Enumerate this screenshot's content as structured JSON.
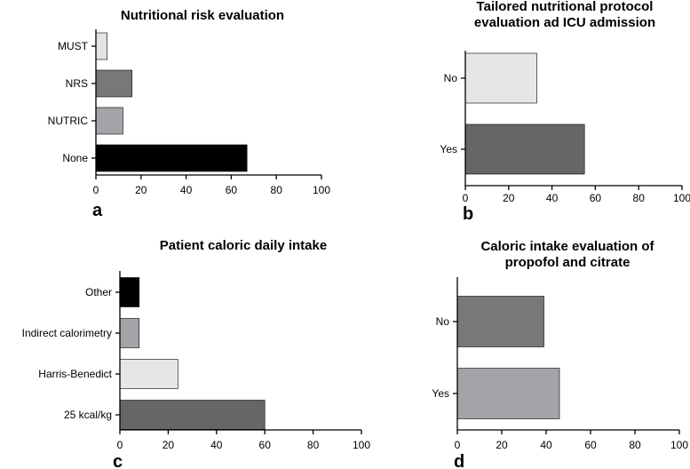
{
  "chart_data": [
    {
      "type": "bar",
      "orientation": "horizontal",
      "panel_label": "a",
      "title_lines": [
        "Nutritional risk evaluation"
      ],
      "categories": [
        "MUST",
        "NRS",
        "NUTRIC",
        "None"
      ],
      "values": [
        5,
        16,
        12,
        67
      ],
      "colors": [
        "#e3e3e3",
        "#787878",
        "#a4a4a8",
        "#000000"
      ],
      "xlim": [
        0,
        100
      ],
      "xticks": [
        "0",
        "20",
        "40",
        "60",
        "80",
        "100"
      ],
      "xlabel": "",
      "ylabel": ""
    },
    {
      "type": "bar",
      "orientation": "horizontal",
      "panel_label": "b",
      "title_lines": [
        "Tailored nutritional protocol",
        "evaluation ad ICU admission"
      ],
      "categories": [
        "No",
        "Yes"
      ],
      "values": [
        33,
        55
      ],
      "colors": [
        "#e6e6e6",
        "#666666"
      ],
      "xlim": [
        0,
        100
      ],
      "xticks": [
        "0",
        "20",
        "40",
        "60",
        "80",
        "100"
      ],
      "xlabel": "",
      "ylabel": ""
    },
    {
      "type": "bar",
      "orientation": "horizontal",
      "panel_label": "c",
      "title_lines": [
        "Patient caloric daily intake"
      ],
      "categories": [
        "Other",
        "Indirect calorimetry",
        "Harris-Benedict",
        "25 kcal/kg"
      ],
      "values": [
        8,
        8,
        24,
        60
      ],
      "colors": [
        "#000000",
        "#a4a4a8",
        "#e6e6e6",
        "#666666"
      ],
      "xlim": [
        0,
        100
      ],
      "xticks": [
        "0",
        "20",
        "40",
        "60",
        "80",
        "100"
      ],
      "xlabel": "",
      "ylabel": ""
    },
    {
      "type": "bar",
      "orientation": "horizontal",
      "panel_label": "d",
      "title_lines": [
        "Caloric intake evaluation of",
        "propofol and citrate"
      ],
      "categories": [
        "No",
        "Yes"
      ],
      "values": [
        39,
        46
      ],
      "colors": [
        "#787878",
        "#a4a4a8"
      ],
      "xlim": [
        0,
        100
      ],
      "xticks": [
        "0",
        "20",
        "40",
        "60",
        "80",
        "100"
      ],
      "xlabel": "",
      "ylabel": ""
    }
  ]
}
